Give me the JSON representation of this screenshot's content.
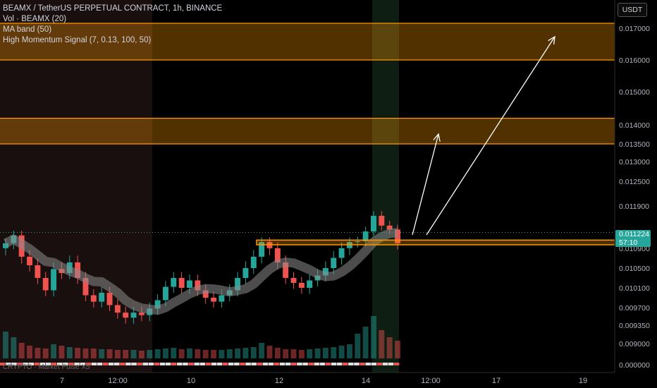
{
  "legend": {
    "title": "BEAMX / TetherUS PERPETUAL CONTRACT, 1h, BINANCE",
    "vol": "Vol · BEAMX (20)",
    "ma_band": "MA band (50)",
    "signal": "High Momentum Signal (7, 0.13, 100, 50)"
  },
  "currency": "USDT",
  "last_price": "0.011224",
  "countdown": "57:10",
  "watermark": "CRYPTO · Market Pulse X5",
  "chart_data": {
    "type": "candlestick",
    "y_ticks": [
      "0.017000",
      "0.016000",
      "0.015000",
      "0.014000",
      "0.013500",
      "0.013000",
      "0.012500",
      "0.011900",
      "0.010900",
      "0.010500",
      "0.010100",
      "0.009700",
      "0.009350",
      "0.009000",
      "0.000000"
    ],
    "x_ticks": [
      "7",
      "12:00",
      "10",
      "12",
      "14",
      "12:00",
      "17",
      "19"
    ],
    "colors": {
      "up": "#26a69a",
      "down": "#ef5350",
      "zone": "#ff9800",
      "band": "#8c8c8c",
      "arrow": "#ffffff"
    },
    "resistance_zones": [
      {
        "top": 0.0172,
        "bottom": 0.016
      },
      {
        "top": 0.0142,
        "bottom": 0.0135
      }
    ],
    "support_zone": {
      "top": 0.01103,
      "bottom": 0.01091
    },
    "closes": [
      0.01095,
      0.01115,
      0.0107,
      0.01055,
      0.0103,
      0.01005,
      0.01048,
      0.0104,
      0.0106,
      0.0103,
      0.00995,
      0.00982,
      0.01,
      0.00975,
      0.0096,
      0.0095,
      0.0096,
      0.00955,
      0.00968,
      0.00985,
      0.01012,
      0.0103,
      0.0101,
      0.01025,
      0.01005,
      0.0099,
      0.00982,
      0.00995,
      0.01005,
      0.0103,
      0.0105,
      0.0107,
      0.01098,
      0.01085,
      0.0106,
      0.0103,
      0.0102,
      0.0101,
      0.01025,
      0.01035,
      0.0105,
      0.01068,
      0.01085,
      0.01098,
      0.011,
      0.01125,
      0.01165,
      0.0114,
      0.0113,
      0.01095
    ],
    "volumes": [
      38,
      30,
      22,
      18,
      15,
      14,
      20,
      18,
      16,
      15,
      14,
      14,
      13,
      13,
      12,
      12,
      12,
      11,
      12,
      13,
      14,
      15,
      13,
      14,
      13,
      12,
      12,
      12,
      13,
      14,
      15,
      16,
      22,
      18,
      15,
      13,
      13,
      12,
      13,
      14,
      15,
      16,
      18,
      20,
      35,
      45,
      60,
      40,
      30,
      25
    ]
  }
}
